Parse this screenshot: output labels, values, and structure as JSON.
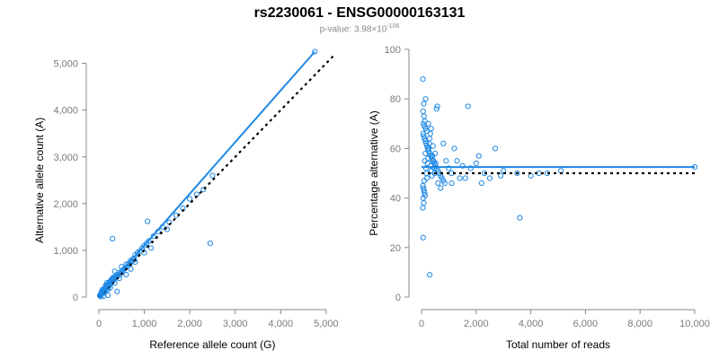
{
  "title": "rs2230061 - ENSG00000163131",
  "subtitle": {
    "prefix": "p-value: 3.98×",
    "base": "10",
    "exponent": "-106"
  },
  "colors": {
    "points": "#1e88e5",
    "fit": "#1e88e5",
    "reference": "#000000",
    "ticks": "#7a7a7a"
  },
  "chart_data": [
    {
      "type": "scatter",
      "xlabel": "Reference allele count (G)",
      "ylabel": "Alternative allele count (A)",
      "xlim": [
        0,
        5200
      ],
      "ylim": [
        0,
        5300
      ],
      "x_ticks": [
        0,
        1000,
        2000,
        3000,
        4000,
        5000
      ],
      "x_tick_labels": [
        "0",
        "1,000",
        "2,000",
        "3,000",
        "4,000",
        "5,000"
      ],
      "y_ticks": [
        0,
        1000,
        2000,
        3000,
        4000,
        5000
      ],
      "y_tick_labels": [
        "0",
        "1,000",
        "2,000",
        "3,000",
        "4,000",
        "5,000"
      ],
      "fit_line": {
        "x": [
          0,
          4750
        ],
        "y": [
          0,
          5250
        ]
      },
      "reference_line": {
        "x": [
          0,
          5200
        ],
        "y": [
          0,
          5200
        ]
      },
      "points": [
        [
          20,
          30
        ],
        [
          30,
          50
        ],
        [
          40,
          60
        ],
        [
          50,
          80
        ],
        [
          60,
          70
        ],
        [
          70,
          100
        ],
        [
          80,
          120
        ],
        [
          90,
          110
        ],
        [
          100,
          140
        ],
        [
          110,
          160
        ],
        [
          120,
          130
        ],
        [
          130,
          180
        ],
        [
          140,
          200
        ],
        [
          150,
          170
        ],
        [
          160,
          220
        ],
        [
          170,
          240
        ],
        [
          180,
          190
        ],
        [
          190,
          260
        ],
        [
          200,
          280
        ],
        [
          210,
          230
        ],
        [
          220,
          300
        ],
        [
          230,
          250
        ],
        [
          240,
          320
        ],
        [
          250,
          270
        ],
        [
          260,
          350
        ],
        [
          270,
          300
        ],
        [
          280,
          380
        ],
        [
          290,
          320
        ],
        [
          300,
          400
        ],
        [
          310,
          360
        ],
        [
          320,
          420
        ],
        [
          340,
          380
        ],
        [
          360,
          440
        ],
        [
          380,
          420
        ],
        [
          400,
          480
        ],
        [
          420,
          450
        ],
        [
          450,
          520
        ],
        [
          480,
          500
        ],
        [
          500,
          560
        ],
        [
          520,
          540
        ],
        [
          550,
          600
        ],
        [
          580,
          620
        ],
        [
          600,
          700
        ],
        [
          620,
          650
        ],
        [
          650,
          720
        ],
        [
          680,
          700
        ],
        [
          700,
          780
        ],
        [
          720,
          760
        ],
        [
          750,
          820
        ],
        [
          780,
          800
        ],
        [
          800,
          900
        ],
        [
          850,
          950
        ],
        [
          900,
          980
        ],
        [
          950,
          1050
        ],
        [
          1000,
          1100
        ],
        [
          1050,
          1150
        ],
        [
          1100,
          1200
        ],
        [
          1150,
          1050
        ],
        [
          1200,
          1300
        ],
        [
          1300,
          1400
        ],
        [
          1400,
          1500
        ],
        [
          1500,
          1450
        ],
        [
          1550,
          1600
        ],
        [
          1700,
          1750
        ],
        [
          1850,
          1900
        ],
        [
          2000,
          2100
        ],
        [
          2150,
          2200
        ],
        [
          2300,
          2300
        ],
        [
          2500,
          2600
        ],
        [
          60,
          120
        ],
        [
          80,
          160
        ],
        [
          100,
          80
        ],
        [
          130,
          100
        ],
        [
          150,
          250
        ],
        [
          180,
          310
        ],
        [
          200,
          160
        ],
        [
          250,
          200
        ],
        [
          300,
          350
        ],
        [
          350,
          300
        ],
        [
          300,
          1250
        ],
        [
          1070,
          1620
        ],
        [
          2450,
          1150
        ],
        [
          4750,
          5250
        ],
        [
          400,
          120
        ],
        [
          500,
          650
        ],
        [
          600,
          480
        ],
        [
          700,
          600
        ],
        [
          200,
          40
        ],
        [
          100,
          20
        ],
        [
          40,
          10
        ],
        [
          350,
          550
        ],
        [
          450,
          400
        ],
        [
          800,
          750
        ],
        [
          1000,
          950
        ]
      ]
    },
    {
      "type": "scatter",
      "xlabel": "Total number of reads",
      "ylabel": "Percentage alternative (A)",
      "xlim": [
        0,
        10000
      ],
      "ylim": [
        0,
        100
      ],
      "x_ticks": [
        0,
        2000,
        4000,
        6000,
        8000,
        10000
      ],
      "x_tick_labels": [
        "0",
        "2,000",
        "4,000",
        "6,000",
        "8,000",
        "10,000"
      ],
      "y_ticks": [
        0,
        20,
        40,
        60,
        80,
        100
      ],
      "y_tick_labels": [
        "0",
        "20",
        "40",
        "60",
        "80",
        "100"
      ],
      "fit_line": {
        "x": [
          0,
          10000
        ],
        "y": [
          52.5,
          52.5
        ]
      },
      "reference_line": {
        "x": [
          0,
          10000
        ],
        "y": [
          50,
          50
        ]
      },
      "points": [
        [
          50,
          88
        ],
        [
          80,
          78
        ],
        [
          60,
          75
        ],
        [
          90,
          73
        ],
        [
          120,
          71
        ],
        [
          70,
          70
        ],
        [
          100,
          69
        ],
        [
          150,
          68
        ],
        [
          200,
          67
        ],
        [
          60,
          66
        ],
        [
          80,
          65
        ],
        [
          110,
          64
        ],
        [
          140,
          63
        ],
        [
          170,
          62
        ],
        [
          200,
          61
        ],
        [
          230,
          60
        ],
        [
          260,
          59
        ],
        [
          300,
          58
        ],
        [
          340,
          57
        ],
        [
          380,
          56
        ],
        [
          420,
          55
        ],
        [
          460,
          54
        ],
        [
          500,
          53
        ],
        [
          550,
          52
        ],
        [
          600,
          51
        ],
        [
          650,
          50
        ],
        [
          700,
          49
        ],
        [
          750,
          48
        ],
        [
          800,
          47
        ],
        [
          850,
          46
        ],
        [
          50,
          45
        ],
        [
          70,
          44
        ],
        [
          90,
          43
        ],
        [
          110,
          42
        ],
        [
          130,
          41
        ],
        [
          60,
          40
        ],
        [
          80,
          38
        ],
        [
          50,
          36
        ],
        [
          100,
          47
        ],
        [
          120,
          55
        ],
        [
          140,
          58
        ],
        [
          160,
          52
        ],
        [
          180,
          50
        ],
        [
          200,
          48
        ],
        [
          220,
          54
        ],
        [
          240,
          56
        ],
        [
          260,
          60
        ],
        [
          280,
          62
        ],
        [
          300,
          64
        ],
        [
          320,
          66
        ],
        [
          340,
          53
        ],
        [
          360,
          51
        ],
        [
          380,
          49
        ],
        [
          400,
          57
        ],
        [
          420,
          61
        ],
        [
          440,
          55
        ],
        [
          460,
          52
        ],
        [
          480,
          50
        ],
        [
          500,
          58
        ],
        [
          520,
          54
        ],
        [
          550,
          76
        ],
        [
          580,
          77
        ],
        [
          900,
          55
        ],
        [
          1000,
          52
        ],
        [
          1100,
          50
        ],
        [
          1200,
          60
        ],
        [
          1300,
          55
        ],
        [
          1400,
          48
        ],
        [
          1500,
          53
        ],
        [
          1700,
          77
        ],
        [
          1800,
          52
        ],
        [
          2000,
          54
        ],
        [
          2100,
          57
        ],
        [
          2300,
          50
        ],
        [
          2500,
          48
        ],
        [
          2700,
          60
        ],
        [
          2900,
          49
        ],
        [
          3000,
          51
        ],
        [
          3500,
          50
        ],
        [
          3600,
          32
        ],
        [
          4000,
          49
        ],
        [
          4300,
          50
        ],
        [
          4600,
          50
        ],
        [
          5100,
          51
        ],
        [
          10000,
          52.5
        ],
        [
          60,
          24
        ],
        [
          300,
          9
        ],
        [
          800,
          62
        ],
        [
          700,
          44
        ],
        [
          600,
          46
        ],
        [
          1100,
          46
        ],
        [
          1600,
          48
        ],
        [
          2200,
          46
        ],
        [
          250,
          70
        ],
        [
          350,
          68
        ],
        [
          150,
          80
        ]
      ]
    }
  ]
}
